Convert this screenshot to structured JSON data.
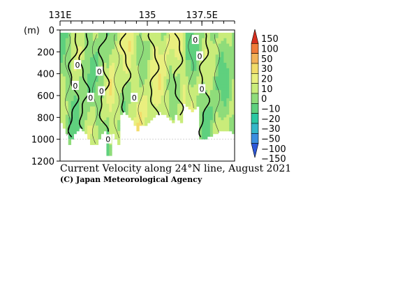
{
  "chart_data": {
    "type": "heatmap",
    "title": "Current Velocity along 24°N line, August 2021",
    "credit": "(C) Japan Meteorological Agency",
    "ylabel": "(m)",
    "x_ticks": [
      {
        "value": 131,
        "label": "131E"
      },
      {
        "value": 135,
        "label": "135"
      },
      {
        "value": 137.5,
        "label": "137.5E"
      }
    ],
    "x_range": [
      131,
      139
    ],
    "y_ticks": [
      0,
      200,
      400,
      600,
      800,
      1000,
      1200
    ],
    "y_range": [
      0,
      1200
    ],
    "colorbar": {
      "levels": [
        "150",
        "100",
        "50",
        "30",
        "20",
        "10",
        "0",
        "-10",
        "-20",
        "-30",
        "-50",
        "-100",
        "-150"
      ],
      "colors": [
        "#d7301f",
        "#f07b3a",
        "#f3b259",
        "#f2dc6a",
        "#e9ef7f",
        "#c9ec7a",
        "#8fdc7a",
        "#5fd07e",
        "#2cc7a2",
        "#35b7c8",
        "#3b8ee0",
        "#2d58d8"
      ]
    },
    "contour_labels": [
      "0",
      "0",
      "0",
      "0",
      "0",
      "0",
      "0",
      "0",
      "0",
      "0"
    ],
    "colors": {
      "negative_dominant": "#6fd17c",
      "positive_dominant": "#d5ec8a"
    }
  }
}
